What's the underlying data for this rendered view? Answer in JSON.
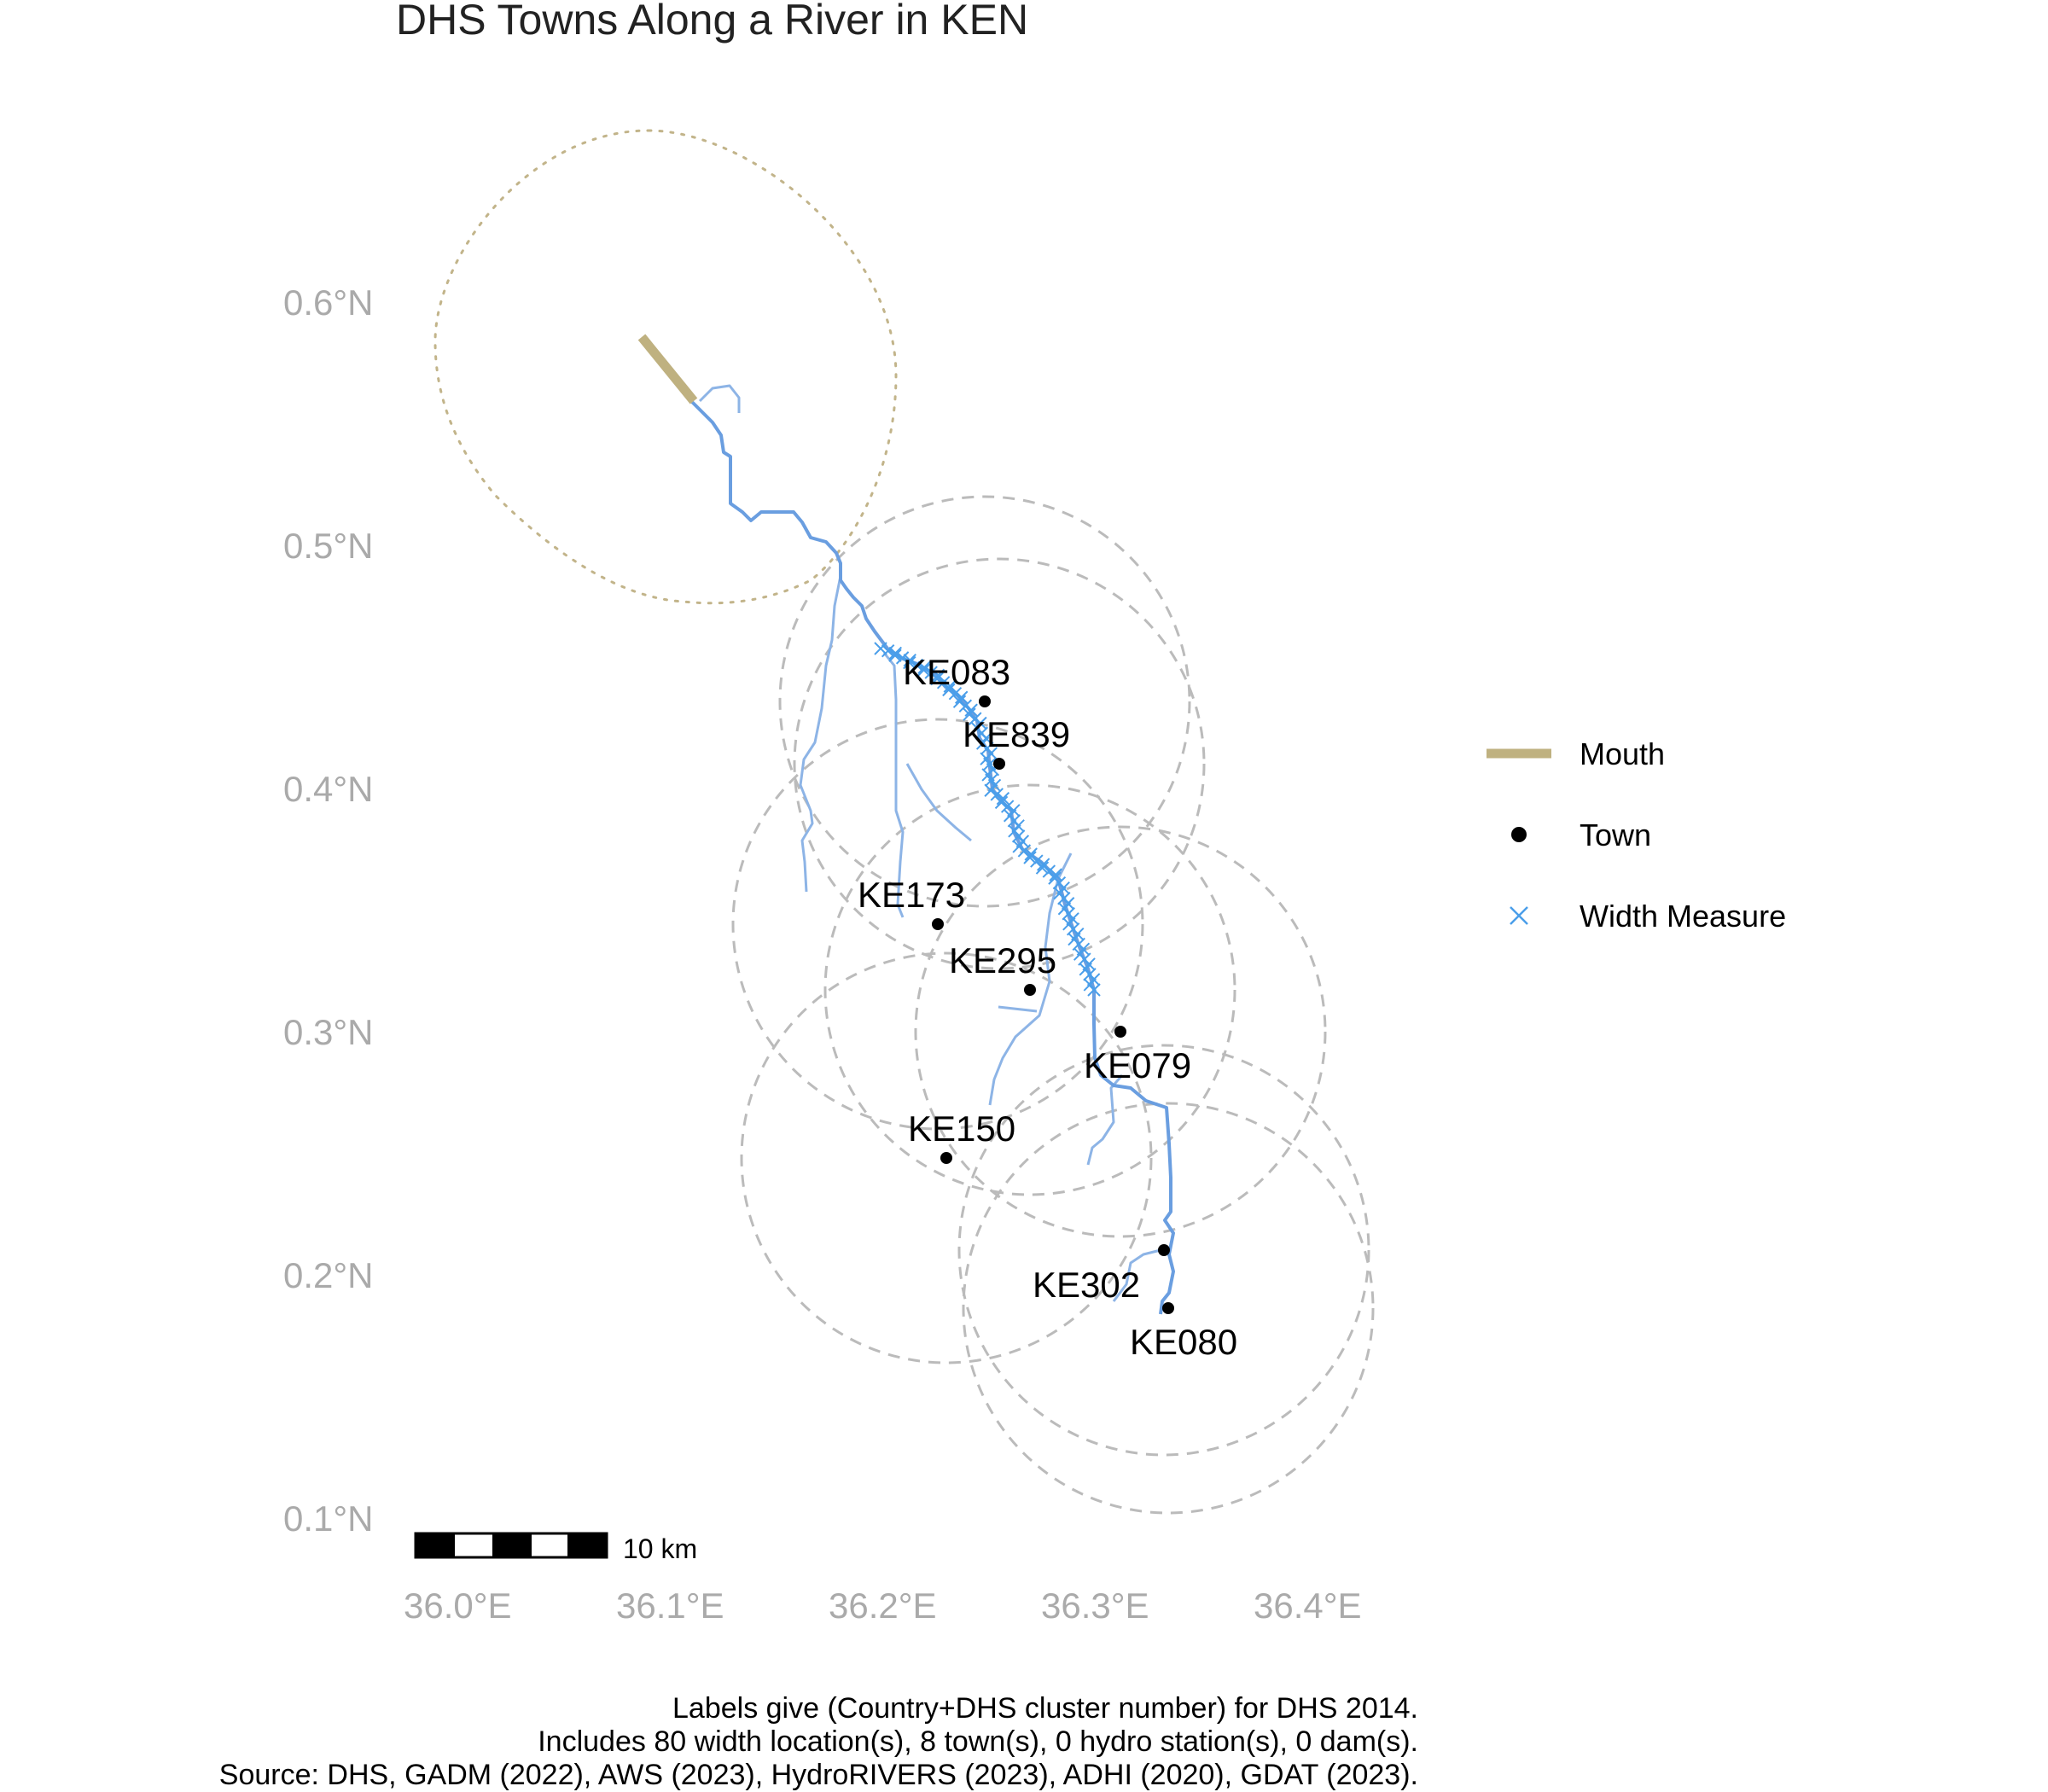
{
  "title": "DHS Towns Along a River in KEN",
  "axes": {
    "x_ticks": [
      "36.0°E",
      "36.1°E",
      "36.2°E",
      "36.3°E",
      "36.4°E"
    ],
    "y_ticks": [
      "0.6°N",
      "0.5°N",
      "0.4°N",
      "0.3°N",
      "0.2°N",
      "0.1°N"
    ]
  },
  "legend": {
    "items": [
      {
        "label": "Mouth",
        "color": "#bfb180"
      },
      {
        "label": "Town",
        "color": "#000000"
      },
      {
        "label": "Width Measure",
        "color": "#4a9eea"
      }
    ]
  },
  "towns": [
    {
      "label": "KE083"
    },
    {
      "label": "KE839"
    },
    {
      "label": "KE173"
    },
    {
      "label": "KE295"
    },
    {
      "label": "KE079"
    },
    {
      "label": "KE150"
    },
    {
      "label": "KE302"
    },
    {
      "label": "KE080"
    }
  ],
  "scale_bar": {
    "label": "10 km"
  },
  "caption": {
    "line1": "Labels give (Country+DHS cluster number) for DHS 2014.",
    "line2": "Includes 80 width location(s), 8 town(s), 0 hydro station(s), 0 dam(s).",
    "line3": "Source: DHS, GADM (2022), AWS (2023), HydroRIVERS (2023), ADHI (2020), GDAT (2023)."
  },
  "colors": {
    "river": "#6a9ee0",
    "tributary": "#8db4e6",
    "width_measure": "#4a9eea",
    "buffer": "#bbbbbb",
    "mouth": "#bfb180"
  }
}
